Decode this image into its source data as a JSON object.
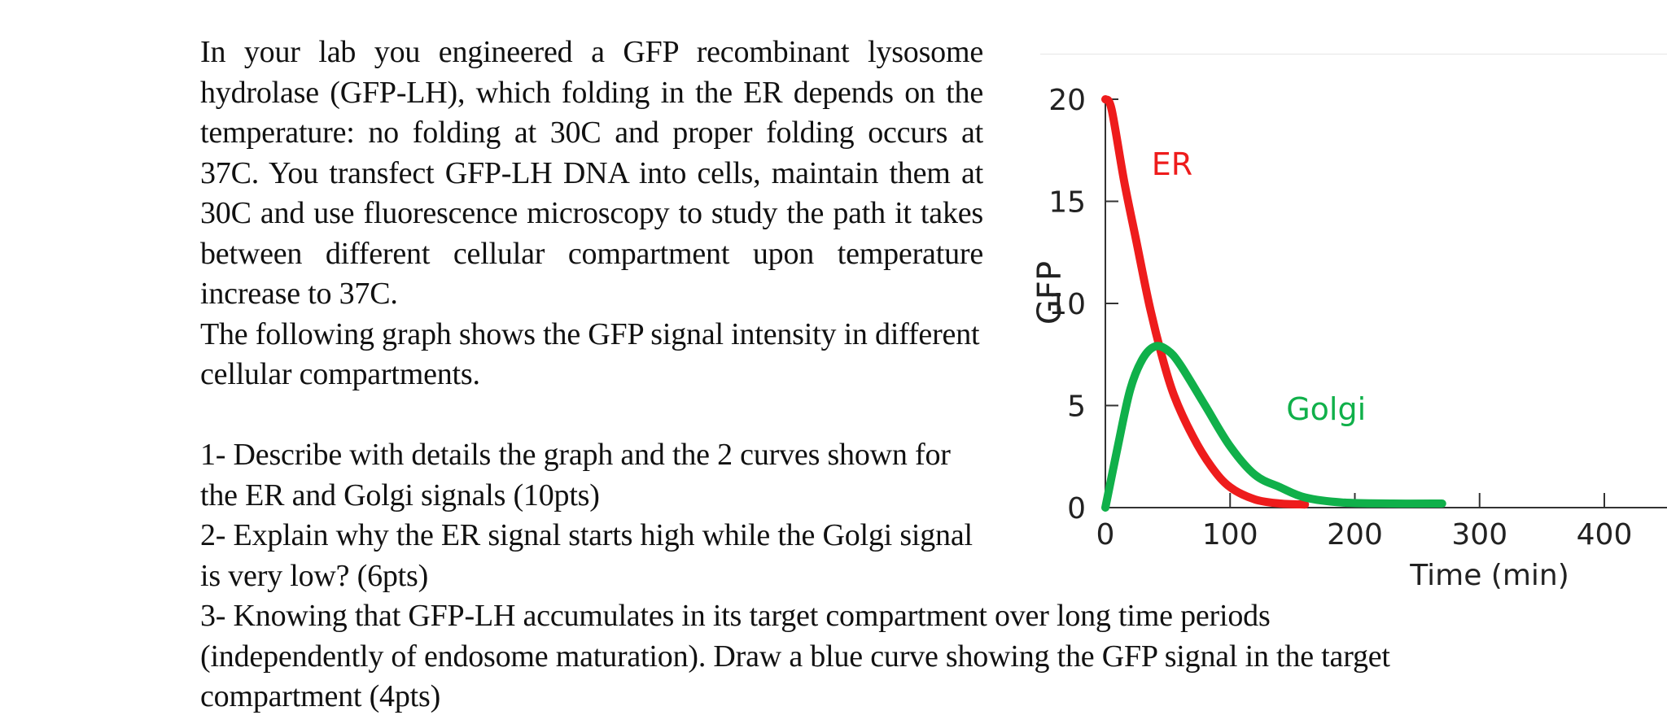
{
  "document": {
    "intro_paragraph": "In your lab you engineered a GFP recombinant lysosome hydrolase (GFP-LH), which folding in the ER depends on the temperature: no folding at 30C and proper folding occurs at 37C. You transfect GFP-LH DNA into cells, maintain them at 30C and use fluorescence microscopy to study the path it takes between different cellular compartment upon temperature increase to 37C.",
    "graph_paragraph": "The following graph shows the GFP signal intensity in different cellular compartments.",
    "question_1": "1- Describe with details the graph and the 2 curves shown for the ER and Golgi signals (10pts)",
    "question_2": "2- Explain why the ER signal starts high while the Golgi signal is very low? (6pts)",
    "question_3": "3- Knowing that GFP-LH accumulates in its target compartment over long time periods (independently of endosome maturation). Draw a blue curve showing the GFP signal in the target compartment (4pts)"
  },
  "chart_data": {
    "type": "line",
    "xlabel": "Time (min)",
    "ylabel": "GFP",
    "xlim": [
      0,
      400
    ],
    "ylim": [
      0,
      20
    ],
    "x_ticks": [
      0,
      100,
      200,
      300,
      400
    ],
    "y_ticks": [
      0,
      5,
      10,
      15,
      20
    ],
    "series": [
      {
        "name": "ER",
        "color": "#ee1c1c",
        "points": [
          [
            0,
            20
          ],
          [
            5,
            19.5
          ],
          [
            15,
            16
          ],
          [
            25,
            13
          ],
          [
            35,
            10
          ],
          [
            45,
            7.5
          ],
          [
            55,
            5.5
          ],
          [
            70,
            3.5
          ],
          [
            85,
            2
          ],
          [
            100,
            1
          ],
          [
            120,
            0.4
          ],
          [
            140,
            0.2
          ],
          [
            160,
            0.15
          ]
        ]
      },
      {
        "name": "Golgi",
        "color": "#10b04a",
        "points": [
          [
            0,
            0
          ],
          [
            10,
            3
          ],
          [
            20,
            5.8
          ],
          [
            30,
            7.3
          ],
          [
            40,
            7.9
          ],
          [
            50,
            7.7
          ],
          [
            60,
            7
          ],
          [
            80,
            5
          ],
          [
            100,
            3
          ],
          [
            120,
            1.6
          ],
          [
            140,
            1
          ],
          [
            160,
            0.5
          ],
          [
            190,
            0.25
          ],
          [
            230,
            0.2
          ],
          [
            270,
            0.2
          ]
        ]
      }
    ]
  }
}
